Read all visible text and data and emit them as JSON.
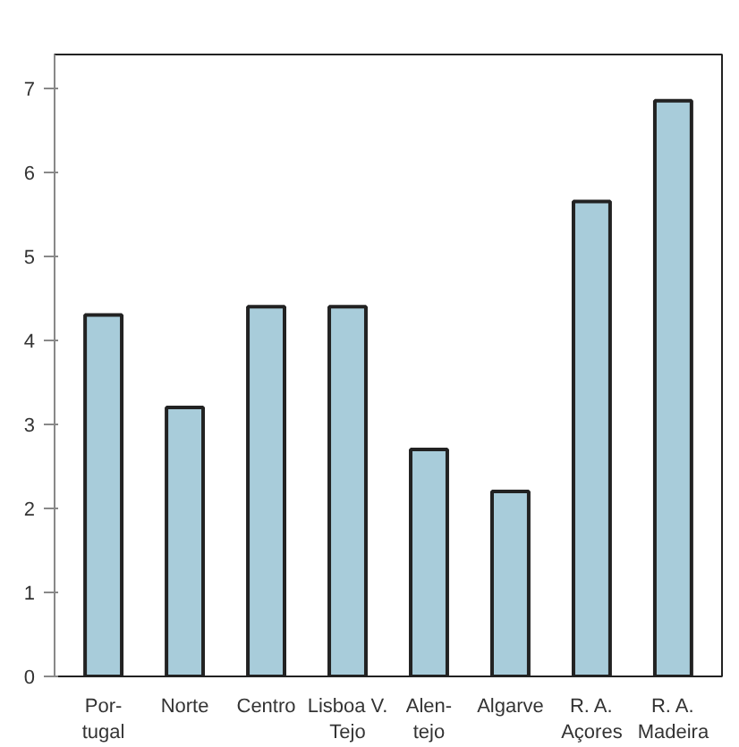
{
  "chart_data": {
    "type": "bar",
    "categories": [
      "Por-\ntugal",
      "Norte",
      "Centro",
      "Lisboa V.\nTejo",
      "Alen-\ntejo",
      "Algarve",
      "R. A.\nAçores",
      "R. A.\nMadeira"
    ],
    "values": [
      4.3,
      3.2,
      4.4,
      4.4,
      2.7,
      2.2,
      5.65,
      6.85
    ],
    "color": "#a8ccda",
    "ylim": [
      0,
      7.4
    ],
    "yticks": [
      0,
      1,
      2,
      3,
      4,
      5,
      6,
      7
    ],
    "grid": false
  }
}
